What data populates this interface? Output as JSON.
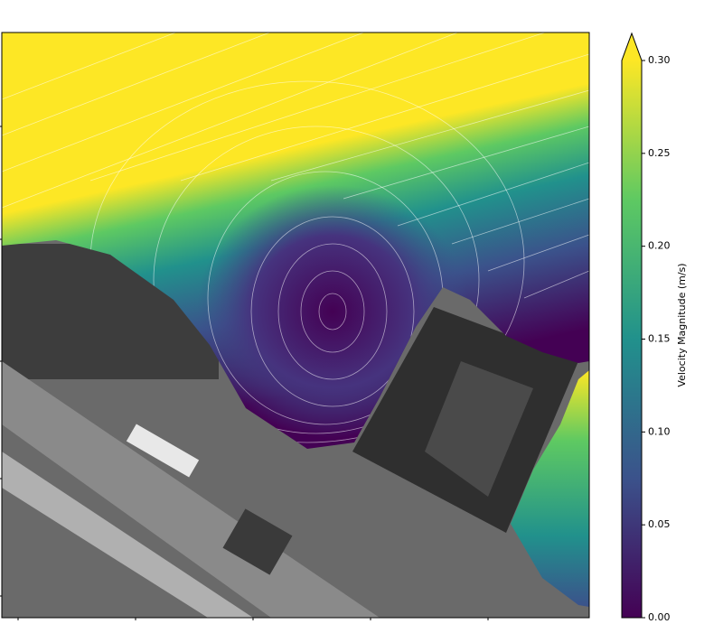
{
  "chart_data": {
    "type": "colorbar",
    "label": "Velocity Magnitude (m/s)",
    "clim": [
      0,
      0.3
    ],
    "ticks": [
      {
        "value": 0,
        "label": "0.00"
      },
      {
        "value": 0.05,
        "label": "0.05"
      },
      {
        "value": 0.1,
        "label": "0.10"
      },
      {
        "value": 0.15,
        "label": "0.15"
      },
      {
        "value": 0.2,
        "label": "0.20"
      },
      {
        "value": 0.25,
        "label": "0.25"
      },
      {
        "value": 0.3,
        "label": "0.30"
      }
    ],
    "colormap_colors": [
      "#440154",
      "#3b528b",
      "#21918c",
      "#5ec962",
      "#fde725"
    ],
    "extend": "max"
  }
}
